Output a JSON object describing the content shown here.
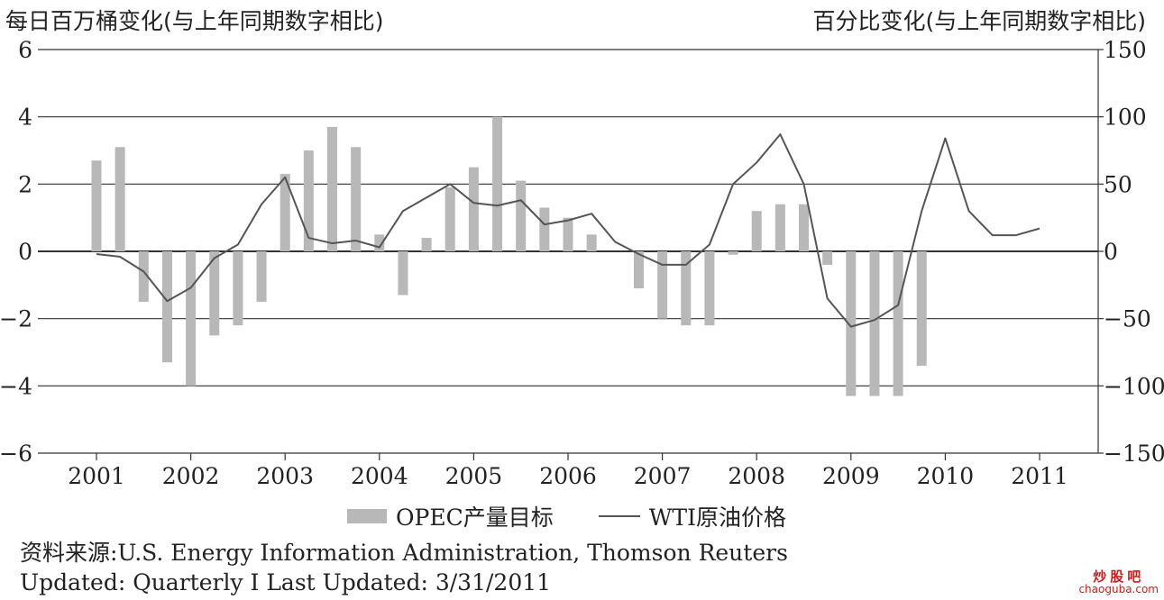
{
  "header": {
    "left_axis_title": "每日百万桶变化(与上年同期数字相比)",
    "right_axis_title": "百分比变化(与上年同期数字相比)"
  },
  "legend": {
    "bar_label": "OPEC产量目标",
    "line_label": "WTI原油价格"
  },
  "footer": {
    "source": "资料来源:U.S. Energy Information Administration, Thomson Reuters",
    "updated": "Updated: Quarterly I Last Updated: 3/31/2011"
  },
  "watermark": {
    "top": "炒股吧",
    "bottom": "chaoguba.com"
  },
  "colors": {
    "bar": "#b8b8b8",
    "line": "#555555",
    "grid": "#333333"
  },
  "chart_data": {
    "type": "bar+line",
    "x_ticks": [
      "2001",
      "2002",
      "2003",
      "2004",
      "2005",
      "2006",
      "2007",
      "2008",
      "2009",
      "2010",
      "2011"
    ],
    "x_range": [
      2001.0,
      2011.0
    ],
    "left_axis": {
      "ylim": [
        -6,
        6
      ],
      "ticks": [
        6,
        4,
        2,
        0,
        -2,
        -4,
        -6
      ]
    },
    "right_axis": {
      "ylim": [
        -150,
        150
      ],
      "ticks": [
        150,
        100,
        50,
        0,
        -50,
        -100,
        -150
      ]
    },
    "bar_series": {
      "name": "OPEC产量目标",
      "axis": "left",
      "x": [
        2001.0,
        2001.25,
        2001.5,
        2001.75,
        2002.0,
        2002.25,
        2002.5,
        2002.75,
        2003.0,
        2003.25,
        2003.5,
        2003.75,
        2004.0,
        2004.25,
        2004.5,
        2004.75,
        2005.0,
        2005.25,
        2005.5,
        2005.75,
        2006.0,
        2006.25,
        2006.5,
        2006.75,
        2007.0,
        2007.25,
        2007.5,
        2007.75,
        2008.0,
        2008.25,
        2008.5,
        2008.75,
        2009.0,
        2009.25,
        2009.5,
        2009.75
      ],
      "values": [
        2.7,
        3.1,
        -1.5,
        -3.3,
        -4.0,
        -2.5,
        -2.2,
        -1.5,
        2.3,
        3.0,
        3.7,
        3.1,
        0.5,
        -1.3,
        0.4,
        1.9,
        2.5,
        4.0,
        2.1,
        1.3,
        1.0,
        0.5,
        0.0,
        -1.1,
        -2.0,
        -2.2,
        -2.2,
        -0.1,
        1.2,
        1.4,
        1.4,
        -0.4,
        -4.3,
        -4.3,
        -4.3,
        -3.4
      ]
    },
    "line_series": {
      "name": "WTI原油价格",
      "axis": "right",
      "x": [
        2001.0,
        2001.25,
        2001.5,
        2001.75,
        2002.0,
        2002.25,
        2002.5,
        2002.75,
        2003.0,
        2003.25,
        2003.5,
        2003.75,
        2004.0,
        2004.25,
        2004.5,
        2004.75,
        2005.0,
        2005.25,
        2005.5,
        2005.75,
        2006.0,
        2006.25,
        2006.5,
        2006.75,
        2007.0,
        2007.25,
        2007.5,
        2007.75,
        2008.0,
        2008.25,
        2008.5,
        2008.75,
        2009.0,
        2009.25,
        2009.5,
        2009.75,
        2010.0,
        2010.25,
        2010.5,
        2010.75,
        2011.0
      ],
      "values": [
        -2,
        -4,
        -15,
        -37,
        -27,
        -5,
        5,
        35,
        55,
        10,
        6,
        8,
        3,
        30,
        40,
        50,
        36,
        34,
        38,
        20,
        23,
        28,
        7,
        -2,
        -10,
        -10,
        5,
        50,
        66,
        87,
        50,
        -35,
        -56,
        -51,
        -40,
        30,
        84,
        30,
        12,
        12,
        17
      ]
    }
  }
}
